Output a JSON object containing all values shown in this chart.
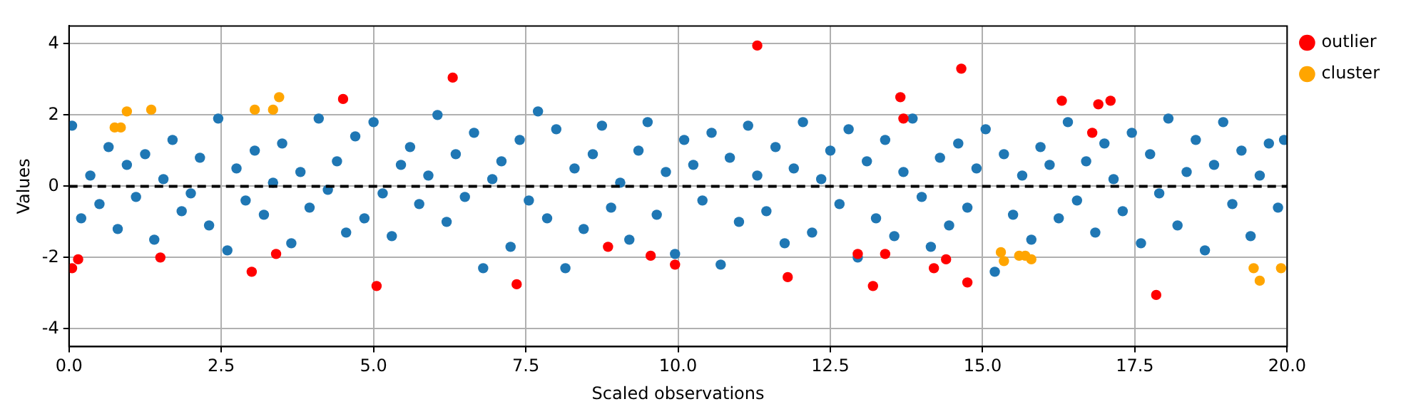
{
  "chart_data": {
    "type": "scatter",
    "xlabel": "Scaled observations",
    "ylabel": "Values",
    "xlim": [
      0,
      20
    ],
    "xticks": [
      {
        "value": 0,
        "label": "0.0"
      },
      {
        "value": 2.5,
        "label": "2.5"
      },
      {
        "value": 5,
        "label": "5.0"
      },
      {
        "value": 7.5,
        "label": "7.5"
      },
      {
        "value": 10,
        "label": "10.0"
      },
      {
        "value": 12.5,
        "label": "12.5"
      },
      {
        "value": 15,
        "label": "15.0"
      },
      {
        "value": 17.5,
        "label": "17.5"
      },
      {
        "value": 20,
        "label": "20.0"
      }
    ],
    "ylim": [
      -4.5,
      4.5
    ],
    "yticks": [
      -4,
      -2,
      0,
      2,
      4
    ],
    "grid": true,
    "legend": "top right",
    "marker": "circle",
    "ref_lines": [
      {
        "axis": "y",
        "value": 0,
        "color": "#000000",
        "line_style": "dashed"
      }
    ],
    "series": [
      {
        "color": "#1f77b4",
        "x": [
          0.05,
          0.2,
          0.35,
          0.5,
          0.65,
          0.8,
          0.95,
          1.1,
          1.25,
          1.4,
          1.55,
          1.7,
          1.85,
          2.0,
          2.15,
          2.3,
          2.45,
          2.6,
          2.75,
          2.9,
          3.05,
          3.2,
          3.35,
          3.5,
          3.65,
          3.8,
          3.95,
          4.1,
          4.25,
          4.4,
          4.55,
          4.7,
          4.85,
          5.0,
          5.15,
          5.3,
          5.45,
          5.6,
          5.75,
          5.9,
          6.05,
          6.2,
          6.35,
          6.5,
          6.65,
          6.8,
          6.95,
          7.1,
          7.25,
          7.4,
          7.55,
          7.7,
          7.85,
          8.0,
          8.15,
          8.3,
          8.45,
          8.6,
          8.75,
          8.9,
          9.05,
          9.2,
          9.35,
          9.5,
          9.65,
          9.8,
          9.95,
          10.1,
          10.25,
          10.4,
          10.55,
          10.7,
          10.85,
          11.0,
          11.15,
          11.3,
          11.45,
          11.6,
          11.75,
          11.9,
          12.05,
          12.2,
          12.35,
          12.5,
          12.65,
          12.8,
          12.95,
          13.1,
          13.25,
          13.4,
          13.55,
          13.7,
          13.85,
          14.0,
          14.15,
          14.3,
          14.45,
          14.6,
          14.75,
          14.9,
          15.05,
          15.2,
          15.35,
          15.5,
          15.65,
          15.8,
          15.95,
          16.1,
          16.25,
          16.4,
          16.55,
          16.7,
          16.85,
          17.0,
          17.15,
          17.3,
          17.45,
          17.6,
          17.75,
          17.9,
          18.05,
          18.2,
          18.35,
          18.5,
          18.65,
          18.8,
          18.95,
          19.1,
          19.25,
          19.4,
          19.55,
          19.7,
          19.85,
          19.95
        ],
        "values": [
          1.7,
          -0.9,
          0.3,
          -0.5,
          1.1,
          -1.2,
          0.6,
          -0.3,
          0.9,
          -1.5,
          0.2,
          1.3,
          -0.7,
          -0.2,
          0.8,
          -1.1,
          1.9,
          -1.8,
          0.5,
          -0.4,
          1.0,
          -0.8,
          0.1,
          1.2,
          -1.6,
          0.4,
          -0.6,
          1.9,
          -0.1,
          0.7,
          -1.3,
          1.4,
          -0.9,
          1.8,
          -0.2,
          -1.4,
          0.6,
          1.1,
          -0.5,
          0.3,
          2.0,
          -1.0,
          0.9,
          -0.3,
          1.5,
          -2.3,
          0.2,
          0.7,
          -1.7,
          1.3,
          -0.4,
          2.1,
          -0.9,
          1.6,
          -2.3,
          0.5,
          -1.2,
          0.9,
          1.7,
          -0.6,
          0.1,
          -1.5,
          1.0,
          1.8,
          -0.8,
          0.4,
          -1.9,
          1.3,
          0.6,
          -0.4,
          1.5,
          -2.2,
          0.8,
          -1.0,
          1.7,
          0.3,
          -0.7,
          1.1,
          -1.6,
          0.5,
          1.8,
          -1.3,
          0.2,
          1.0,
          -0.5,
          1.6,
          -2.0,
          0.7,
          -0.9,
          1.3,
          -1.4,
          0.4,
          1.9,
          -0.3,
          -1.7,
          0.8,
          -1.1,
          1.2,
          -0.6,
          0.5,
          1.6,
          -2.4,
          0.9,
          -0.8,
          0.3,
          -1.5,
          1.1,
          0.6,
          -0.9,
          1.8,
          -0.4,
          0.7,
          -1.3,
          1.2,
          0.2,
          -0.7,
          1.5,
          -1.6,
          0.9,
          -0.2,
          1.9,
          -1.1,
          0.4,
          1.3,
          -1.8,
          0.6,
          1.8,
          -0.5,
          1.0,
          -1.4,
          0.3,
          1.2,
          -0.6,
          1.3
        ]
      },
      {
        "name": "outlier",
        "color": "#ff0000",
        "x": [
          0.05,
          0.15,
          1.5,
          3.0,
          3.4,
          4.5,
          5.05,
          6.3,
          7.35,
          8.85,
          9.55,
          9.95,
          11.3,
          11.8,
          12.95,
          13.2,
          13.4,
          13.65,
          13.7,
          14.2,
          14.4,
          14.65,
          14.75,
          16.3,
          16.8,
          16.9,
          17.1,
          17.85
        ],
        "values": [
          -2.3,
          -2.05,
          -2.0,
          -2.4,
          -1.9,
          2.45,
          -2.8,
          3.05,
          -2.75,
          -1.7,
          -1.95,
          -2.2,
          3.95,
          -2.55,
          -1.9,
          -2.8,
          -1.9,
          2.5,
          1.9,
          -2.3,
          -2.05,
          3.3,
          -2.7,
          2.4,
          1.5,
          2.3,
          2.4,
          -3.05
        ]
      },
      {
        "name": "cluster",
        "color": "#ffa500",
        "x": [
          0.75,
          0.85,
          0.95,
          1.35,
          3.05,
          3.35,
          3.45,
          15.3,
          15.35,
          15.6,
          15.7,
          15.8,
          19.45,
          19.55,
          19.9
        ],
        "values": [
          1.65,
          1.65,
          2.1,
          2.15,
          2.15,
          2.15,
          2.5,
          -1.85,
          -2.1,
          -1.95,
          -1.95,
          -2.05,
          -2.3,
          -2.65,
          -2.3
        ]
      }
    ]
  }
}
